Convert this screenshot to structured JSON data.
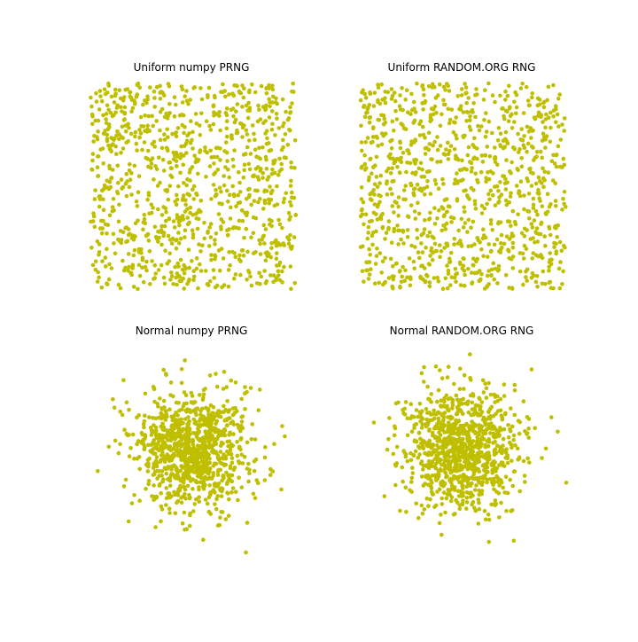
{
  "figure": {
    "background": "#ffffff",
    "marker_color": "#bfbf00"
  },
  "chart_data": [
    {
      "type": "scatter",
      "title": "Uniform numpy PRNG",
      "distribution": "uniform",
      "axes_visible": false,
      "grid": false,
      "x_range": [
        0,
        1
      ],
      "y_range": [
        0,
        1
      ],
      "n_points": 1000,
      "points": [
        [
          0.212,
          0.011
        ],
        [
          0.512,
          0.617
        ],
        [
          0.047,
          0.437
        ],
        [
          0.972,
          0.262
        ],
        [
          0.745,
          0.931
        ],
        [
          0.301,
          0.705
        ],
        [
          0.588,
          0.142
        ],
        [
          0.873,
          0.498
        ],
        [
          0.129,
          0.881
        ],
        [
          0.438,
          0.333
        ],
        [
          0.663,
          0.781
        ],
        [
          0.025,
          0.094
        ],
        [
          0.915,
          0.067
        ],
        [
          0.352,
          0.954
        ],
        [
          0.709,
          0.402
        ],
        [
          0.176,
          0.559
        ],
        [
          0.827,
          0.825
        ],
        [
          0.481,
          0.046
        ],
        [
          0.094,
          0.681
        ],
        [
          0.636,
          0.291
        ]
      ]
    },
    {
      "type": "scatter",
      "title": "Uniform RANDOM.ORG RNG",
      "distribution": "uniform",
      "axes_visible": false,
      "grid": false,
      "x_range": [
        0,
        1
      ],
      "y_range": [
        0,
        1
      ],
      "n_points": 1000,
      "points": [
        [
          0.741,
          0.224
        ],
        [
          0.033,
          0.875
        ],
        [
          0.402,
          0.511
        ],
        [
          0.986,
          0.633
        ],
        [
          0.158,
          0.047
        ],
        [
          0.566,
          0.946
        ],
        [
          0.813,
          0.379
        ],
        [
          0.274,
          0.288
        ],
        [
          0.679,
          0.701
        ],
        [
          0.097,
          0.452
        ],
        [
          0.921,
          0.141
        ],
        [
          0.345,
          0.823
        ],
        [
          0.507,
          0.069
        ],
        [
          0.762,
          0.585
        ],
        [
          0.201,
          0.977
        ],
        [
          0.634,
          0.335
        ],
        [
          0.058,
          0.216
        ],
        [
          0.889,
          0.905
        ],
        [
          0.427,
          0.656
        ],
        [
          0.616,
          0.015
        ]
      ]
    },
    {
      "type": "scatter",
      "title": "Normal numpy PRNG",
      "distribution": "normal",
      "axes_visible": false,
      "grid": false,
      "x_range": [
        -3.5,
        3.5
      ],
      "y_range": [
        -3.5,
        3.5
      ],
      "n_points": 1000,
      "points": [
        [
          0.12,
          -0.31
        ],
        [
          -1.05,
          0.44
        ],
        [
          0.73,
          1.12
        ],
        [
          -0.27,
          -1.36
        ],
        [
          1.58,
          0.09
        ],
        [
          -1.82,
          -0.66
        ],
        [
          0.41,
          2.07
        ],
        [
          -0.62,
          0.97
        ],
        [
          2.21,
          -1.14
        ],
        [
          -2.48,
          1.29
        ],
        [
          0.05,
          0.02
        ],
        [
          1.11,
          -2.37
        ],
        [
          -1.34,
          -1.71
        ],
        [
          0.88,
          0.62
        ],
        [
          -0.49,
          -0.18
        ],
        [
          3.12,
          0.45
        ],
        [
          -3.25,
          -0.73
        ],
        [
          0.34,
          -3.07
        ],
        [
          -0.93,
          2.58
        ],
        [
          1.76,
          1.91
        ]
      ]
    },
    {
      "type": "scatter",
      "title": "Normal RANDOM.ORG RNG",
      "distribution": "normal",
      "axes_visible": false,
      "grid": false,
      "x_range": [
        -3.5,
        3.5
      ],
      "y_range": [
        -3.5,
        3.5
      ],
      "n_points": 1000,
      "points": [
        [
          -0.18,
          0.27
        ],
        [
          0.96,
          -0.53
        ],
        [
          -0.71,
          -1.08
        ],
        [
          1.43,
          1.24
        ],
        [
          -1.66,
          0.31
        ],
        [
          0.29,
          -1.87
        ],
        [
          -0.44,
          1.75
        ],
        [
          2.05,
          -0.39
        ],
        [
          -2.31,
          -1.21
        ],
        [
          0.67,
          2.36
        ],
        [
          0.08,
          -0.06
        ],
        [
          -1.22,
          2.14
        ],
        [
          1.62,
          -2.09
        ],
        [
          -0.83,
          0.58
        ],
        [
          0.51,
          0.19
        ],
        [
          3.21,
          0.61
        ],
        [
          -3.05,
          0.92
        ],
        [
          0.22,
          3.24
        ],
        [
          0.87,
          -3.14
        ],
        [
          -1.95,
          -2.12
        ]
      ]
    }
  ]
}
